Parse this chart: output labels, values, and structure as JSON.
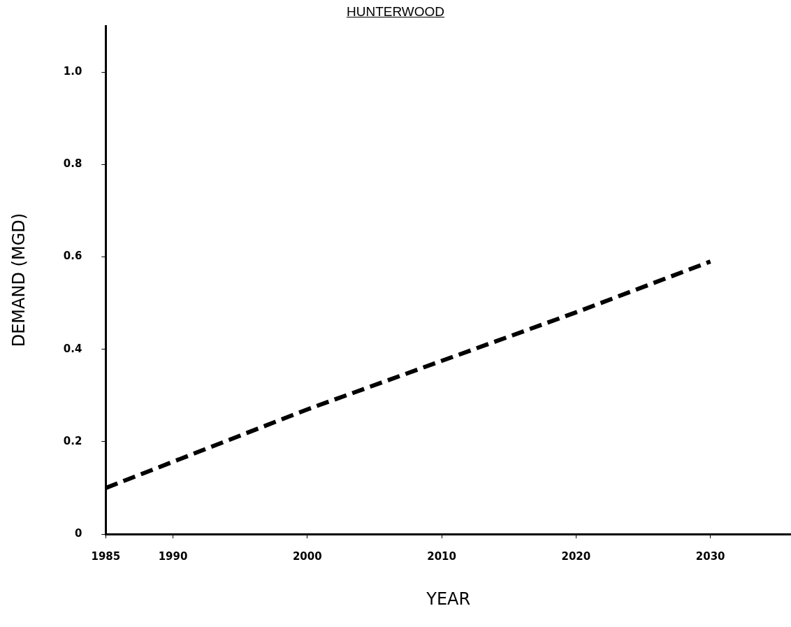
{
  "chart_data": {
    "type": "line",
    "title": "HUNTERWOOD",
    "xlabel": "YEAR",
    "ylabel": "DEMAND (MGD)",
    "x": [
      1985,
      2000,
      2010,
      2020,
      2030
    ],
    "series": [
      {
        "color": "#000000",
        "values": [
          0.1,
          0.27,
          0.375,
          0.48,
          0.59
        ]
      }
    ],
    "xlim": [
      1985,
      2036
    ],
    "xticks": [
      1985,
      1990,
      2000,
      2010,
      2020,
      2030
    ],
    "ylim": [
      0,
      1.1
    ],
    "yticks": [
      0,
      0.2,
      0.4,
      0.6,
      0.8,
      {
        "value": 1,
        "label": "1.0"
      }
    ],
    "grid": false,
    "legend": false,
    "marker": "none",
    "line_style": "dashed"
  }
}
